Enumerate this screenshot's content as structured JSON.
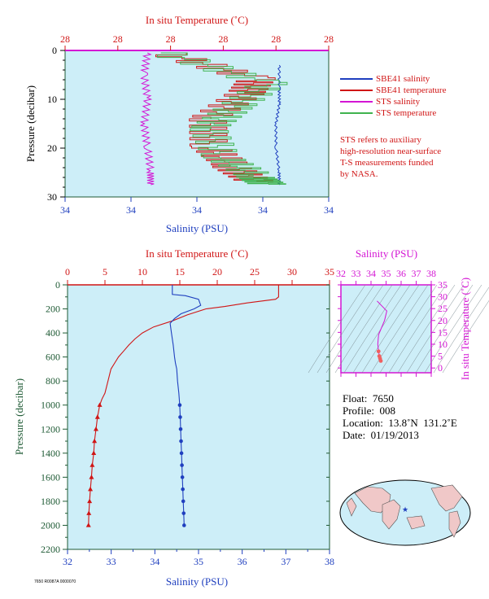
{
  "chart_data": [
    {
      "type": "line",
      "panel": "near-surface profile",
      "xlabel_bottom": "Salinity (PSU)",
      "xlabel_top": "In situ Temperature (˚C)",
      "ylabel": "Pressure (decibar)",
      "x_ticks_bottom": [
        "34",
        "34",
        "34",
        "34",
        "34"
      ],
      "x_ticks_top": [
        "28",
        "28",
        "28",
        "28",
        "28",
        "28"
      ],
      "y_ticks": [
        "0",
        "10",
        "20",
        "30"
      ],
      "ylim": [
        30,
        0
      ],
      "series": [
        {
          "name": "SBE41 salinity",
          "color": "#1f3fbf",
          "points": [
            [
              34.45,
              3
            ],
            [
              34.45,
              8
            ],
            [
              34.45,
              11
            ],
            [
              34.44,
              15
            ],
            [
              34.44,
              20
            ],
            [
              34.45,
              25
            ],
            [
              34.45,
              27.5
            ]
          ]
        },
        {
          "name": "SBE41 temperature",
          "color": "#d01515",
          "points": [
            [
              27.9,
              0.5
            ],
            [
              28.3,
              6
            ],
            [
              28.25,
              9
            ],
            [
              28.1,
              14
            ],
            [
              28.1,
              20
            ],
            [
              28.2,
              24
            ],
            [
              28.3,
              27
            ]
          ]
        },
        {
          "name": "STS salinity",
          "color": "#d416d4",
          "points": [
            [
              34.05,
              0.5
            ],
            [
              34.04,
              5
            ],
            [
              34.05,
              10
            ],
            [
              34.04,
              15
            ],
            [
              34.05,
              20
            ],
            [
              34.06,
              25
            ],
            [
              34.06,
              27.5
            ]
          ]
        },
        {
          "name": "STS temperature",
          "color": "#3fb34f",
          "points": [
            [
              27.9,
              0.5
            ],
            [
              28.35,
              7
            ],
            [
              28.2,
              12
            ],
            [
              28.1,
              16
            ],
            [
              28.15,
              22
            ],
            [
              28.3,
              26
            ],
            [
              28.35,
              27.5
            ]
          ]
        }
      ]
    },
    {
      "type": "line",
      "panel": "full profile",
      "xlabel_bottom": "Salinity (PSU)",
      "xlabel_top": "In situ Temperature (˚C)",
      "ylabel": "Pressure (decibar)",
      "xlim_salinity": [
        32,
        38
      ],
      "xlim_temperature": [
        0,
        35
      ],
      "ylim": [
        2200,
        0
      ],
      "x_ticks_bottom": [
        "32",
        "33",
        "34",
        "35",
        "36",
        "37",
        "38"
      ],
      "x_ticks_top": [
        "0",
        "5",
        "10",
        "15",
        "20",
        "25",
        "30",
        "35"
      ],
      "y_ticks": [
        "0",
        "200",
        "400",
        "600",
        "800",
        "1000",
        "1200",
        "1400",
        "1600",
        "1800",
        "2000",
        "2200"
      ],
      "series": [
        {
          "name": "Temperature",
          "color": "#d01515",
          "points": [
            [
              28.2,
              0
            ],
            [
              28.2,
              100
            ],
            [
              27.8,
              120
            ],
            [
              24,
              150
            ],
            [
              21,
              180
            ],
            [
              18.5,
              200
            ],
            [
              16,
              250
            ],
            [
              14,
              300
            ],
            [
              11.5,
              350
            ],
            [
              10,
              400
            ],
            [
              9,
              450
            ],
            [
              8.2,
              500
            ],
            [
              7.5,
              550
            ],
            [
              6.8,
              600
            ],
            [
              6.3,
              650
            ],
            [
              5.8,
              700
            ],
            [
              5.4,
              800
            ],
            [
              5.0,
              900
            ],
            [
              4.6,
              950
            ],
            [
              4.3,
              1000
            ],
            [
              4.0,
              1100
            ],
            [
              3.8,
              1200
            ],
            [
              3.6,
              1300
            ],
            [
              3.5,
              1400
            ],
            [
              3.3,
              1500
            ],
            [
              3.2,
              1600
            ],
            [
              3.05,
              1700
            ],
            [
              2.95,
              1800
            ],
            [
              2.85,
              1900
            ],
            [
              2.8,
              2000
            ]
          ]
        },
        {
          "name": "Salinity",
          "color": "#1f3fbf",
          "points": [
            [
              34.4,
              0
            ],
            [
              34.4,
              80
            ],
            [
              34.7,
              90
            ],
            [
              35.0,
              120
            ],
            [
              35.05,
              170
            ],
            [
              34.9,
              200
            ],
            [
              34.6,
              240
            ],
            [
              34.45,
              280
            ],
            [
              34.35,
              320
            ],
            [
              34.38,
              400
            ],
            [
              34.42,
              500
            ],
            [
              34.45,
              600
            ],
            [
              34.47,
              650
            ],
            [
              34.5,
              700
            ],
            [
              34.52,
              800
            ],
            [
              34.55,
              900
            ],
            [
              34.57,
              1000
            ],
            [
              34.58,
              1100
            ],
            [
              34.59,
              1200
            ],
            [
              34.6,
              1300
            ],
            [
              34.61,
              1400
            ],
            [
              34.62,
              1500
            ],
            [
              34.63,
              1600
            ],
            [
              34.64,
              1700
            ],
            [
              34.65,
              1800
            ],
            [
              34.66,
              1900
            ],
            [
              34.67,
              2000
            ]
          ]
        }
      ]
    },
    {
      "type": "scatter",
      "panel": "T-S diagram",
      "xlabel": "Salinity (PSU)",
      "ylabel": "In situ Temperature (˚C)",
      "xlim": [
        32,
        38
      ],
      "ylim": [
        -2,
        35
      ],
      "x_ticks": [
        "32",
        "33",
        "34",
        "35",
        "36",
        "37",
        "38"
      ],
      "y_ticks": [
        "0",
        "5",
        "10",
        "15",
        "20",
        "25",
        "30",
        "35"
      ],
      "points": [
        [
          34.4,
          28.2
        ],
        [
          35.05,
          24
        ],
        [
          34.9,
          20
        ],
        [
          34.5,
          14
        ],
        [
          34.45,
          10
        ],
        [
          34.5,
          7
        ],
        [
          34.55,
          5
        ],
        [
          34.6,
          4
        ],
        [
          34.65,
          3
        ]
      ]
    }
  ],
  "legend": [
    {
      "label": "SBE41 salinity",
      "color": "#1f3fbf"
    },
    {
      "label": "SBE41 temperature",
      "color": "#d01515"
    },
    {
      "label": "STS salinity",
      "color": "#d416d4"
    },
    {
      "label": "STS temperature",
      "color": "#3fb34f"
    }
  ],
  "note": "STS refers to auxiliary\nhigh-resolution near-surface\nT-S measurements funded\nby NASA.",
  "info": {
    "float": "Float:  7650",
    "profile": "Profile:  008",
    "location": "Location:  13.8˚N  131.2˚E",
    "date": "Date:  01/19/2013"
  },
  "footer_tiny": "7650 R0087A 0000070",
  "colors": {
    "plot_bg": "#cdeef8",
    "red": "#d01515",
    "blue": "#1f3fbf",
    "magenta": "#d416d4",
    "green": "#3fb34f",
    "dark_green": "#1e5a34"
  }
}
